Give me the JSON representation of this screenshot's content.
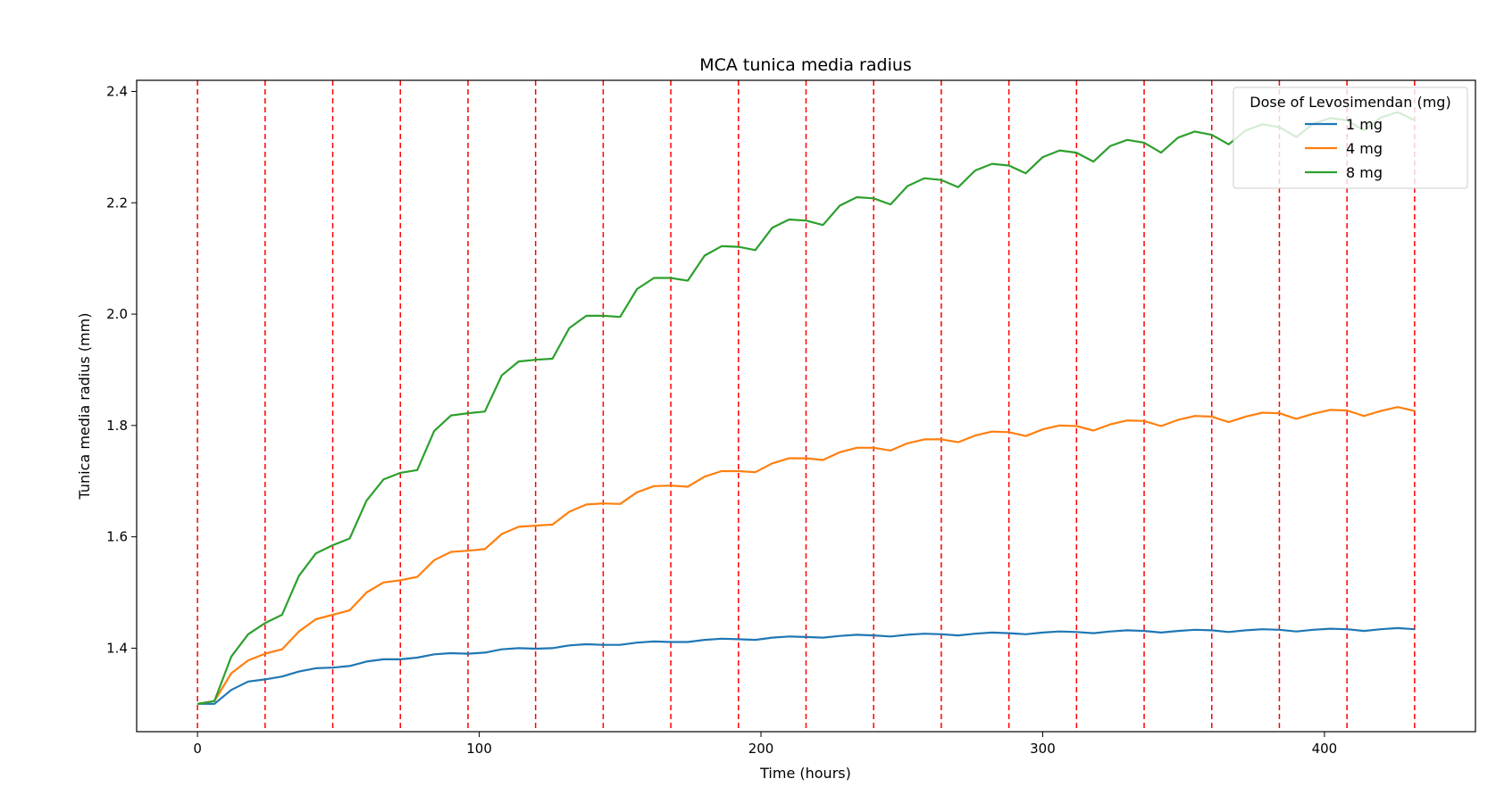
{
  "chart_data": {
    "type": "line",
    "title": "MCA tunica media radius",
    "xlabel": "Time (hours)",
    "ylabel": "Tunica media radius (mm)",
    "xlim": [
      -21.6,
      453.6
    ],
    "ylim": [
      1.25,
      2.42
    ],
    "xticks": [
      0,
      100,
      200,
      300,
      400
    ],
    "yticks": [
      1.4,
      1.6,
      1.8,
      2.0,
      2.2,
      2.4
    ],
    "xtick_labels": [
      "0",
      "100",
      "200",
      "300",
      "400"
    ],
    "ytick_labels": [
      "1.4",
      "1.6",
      "1.8",
      "2.0",
      "2.2",
      "2.4"
    ],
    "grid": false,
    "dose_times": [
      0,
      24,
      48,
      72,
      96,
      120,
      144,
      168,
      192,
      216,
      240,
      264,
      288,
      312,
      336,
      360,
      384,
      408,
      432
    ],
    "dose_line_color": "#ff0000",
    "legend": {
      "title": "Dose of Levosimendan (mg)",
      "placement": "top-right"
    },
    "series": [
      {
        "name": "1 mg",
        "color": "#1f77b4",
        "x": [
          0,
          6,
          12,
          18,
          24,
          30,
          36,
          42,
          48,
          54,
          60,
          66,
          72,
          78,
          84,
          90,
          96,
          102,
          108,
          114,
          120,
          126,
          132,
          138,
          144,
          150,
          156,
          162,
          168,
          174,
          180,
          186,
          192,
          198,
          204,
          210,
          216,
          222,
          228,
          234,
          240,
          246,
          252,
          258,
          264,
          270,
          276,
          282,
          288,
          294,
          300,
          306,
          312,
          318,
          324,
          330,
          336,
          342,
          348,
          354,
          360,
          366,
          372,
          378,
          384,
          390,
          396,
          402,
          408,
          414,
          420,
          426,
          432
        ],
        "y": [
          1.3,
          1.3,
          1.325,
          1.34,
          1.344,
          1.349,
          1.358,
          1.364,
          1.365,
          1.368,
          1.376,
          1.38,
          1.38,
          1.383,
          1.389,
          1.391,
          1.39,
          1.392,
          1.398,
          1.4,
          1.399,
          1.4,
          1.405,
          1.407,
          1.406,
          1.406,
          1.41,
          1.412,
          1.411,
          1.411,
          1.415,
          1.417,
          1.416,
          1.415,
          1.419,
          1.421,
          1.42,
          1.419,
          1.422,
          1.424,
          1.423,
          1.421,
          1.424,
          1.426,
          1.425,
          1.423,
          1.426,
          1.428,
          1.427,
          1.425,
          1.428,
          1.43,
          1.429,
          1.427,
          1.43,
          1.432,
          1.431,
          1.428,
          1.431,
          1.433,
          1.432,
          1.429,
          1.432,
          1.434,
          1.433,
          1.43,
          1.433,
          1.435,
          1.434,
          1.431,
          1.434,
          1.436,
          1.434
        ]
      },
      {
        "name": "4 mg",
        "color": "#ff7f0e",
        "x": [
          0,
          6,
          12,
          18,
          24,
          30,
          36,
          42,
          48,
          54,
          60,
          66,
          72,
          78,
          84,
          90,
          96,
          102,
          108,
          114,
          120,
          126,
          132,
          138,
          144,
          150,
          156,
          162,
          168,
          174,
          180,
          186,
          192,
          198,
          204,
          210,
          216,
          222,
          228,
          234,
          240,
          246,
          252,
          258,
          264,
          270,
          276,
          282,
          288,
          294,
          300,
          306,
          312,
          318,
          324,
          330,
          336,
          342,
          348,
          354,
          360,
          366,
          372,
          378,
          384,
          390,
          396,
          402,
          408,
          414,
          420,
          426,
          432
        ],
        "y": [
          1.3,
          1.305,
          1.355,
          1.378,
          1.39,
          1.398,
          1.43,
          1.452,
          1.46,
          1.468,
          1.5,
          1.518,
          1.522,
          1.528,
          1.558,
          1.573,
          1.575,
          1.578,
          1.605,
          1.618,
          1.62,
          1.622,
          1.645,
          1.658,
          1.66,
          1.659,
          1.68,
          1.691,
          1.692,
          1.69,
          1.708,
          1.718,
          1.718,
          1.716,
          1.732,
          1.741,
          1.741,
          1.738,
          1.752,
          1.76,
          1.76,
          1.755,
          1.768,
          1.775,
          1.775,
          1.77,
          1.782,
          1.789,
          1.788,
          1.781,
          1.793,
          1.8,
          1.799,
          1.791,
          1.802,
          1.809,
          1.808,
          1.799,
          1.81,
          1.817,
          1.816,
          1.806,
          1.816,
          1.823,
          1.822,
          1.812,
          1.821,
          1.828,
          1.827,
          1.817,
          1.826,
          1.833,
          1.826
        ]
      },
      {
        "name": "8 mg",
        "color": "#2ca02c",
        "x": [
          0,
          6,
          12,
          18,
          24,
          30,
          36,
          42,
          48,
          54,
          60,
          66,
          72,
          78,
          84,
          90,
          96,
          102,
          108,
          114,
          120,
          126,
          132,
          138,
          144,
          150,
          156,
          162,
          168,
          174,
          180,
          186,
          192,
          198,
          204,
          210,
          216,
          222,
          228,
          234,
          240,
          246,
          252,
          258,
          264,
          270,
          276,
          282,
          288,
          294,
          300,
          306,
          312,
          318,
          324,
          330,
          336,
          342,
          348,
          354,
          360,
          366,
          372,
          378,
          384,
          390,
          396,
          402,
          408,
          414,
          420,
          426,
          432
        ],
        "y": [
          1.3,
          1.305,
          1.385,
          1.425,
          1.445,
          1.46,
          1.53,
          1.57,
          1.585,
          1.597,
          1.665,
          1.703,
          1.715,
          1.72,
          1.79,
          1.818,
          1.822,
          1.825,
          1.89,
          1.915,
          1.918,
          1.92,
          1.975,
          1.997,
          1.997,
          1.995,
          2.045,
          2.065,
          2.065,
          2.06,
          2.105,
          2.122,
          2.121,
          2.115,
          2.155,
          2.17,
          2.168,
          2.16,
          2.195,
          2.21,
          2.208,
          2.197,
          2.23,
          2.244,
          2.241,
          2.228,
          2.258,
          2.27,
          2.267,
          2.253,
          2.282,
          2.294,
          2.29,
          2.274,
          2.302,
          2.313,
          2.308,
          2.29,
          2.317,
          2.328,
          2.322,
          2.305,
          2.33,
          2.341,
          2.336,
          2.318,
          2.342,
          2.352,
          2.348,
          2.33,
          2.353,
          2.363,
          2.348
        ]
      }
    ]
  }
}
